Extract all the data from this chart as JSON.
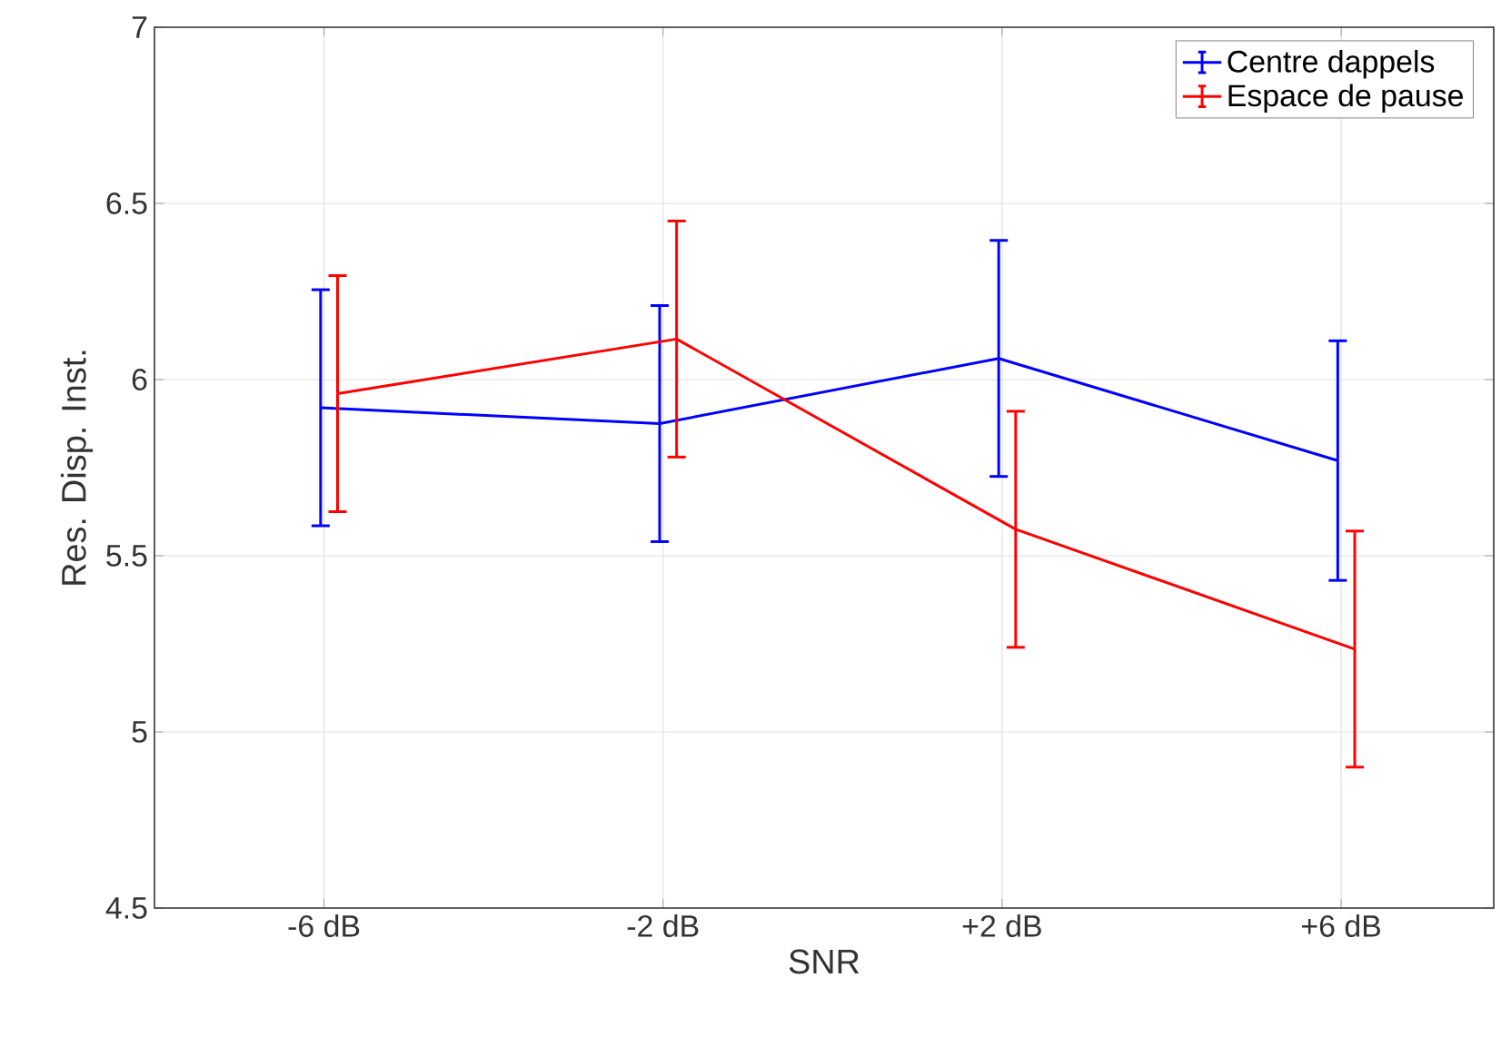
{
  "chart_data": {
    "type": "line",
    "xlabel": "SNR",
    "ylabel": "Res. Disp. Inst.",
    "categories": [
      "-6 dB",
      "-2 dB",
      "+2 dB",
      "+6 dB"
    ],
    "series": [
      {
        "name": "Centre dappels",
        "color": "#0000ff",
        "values": [
          5.92,
          5.875,
          6.06,
          5.77
        ],
        "errors": [
          0.335,
          0.335,
          0.335,
          0.34
        ]
      },
      {
        "name": "Espace de pause",
        "color": "#ff0000",
        "values": [
          5.96,
          6.115,
          5.575,
          5.235
        ],
        "errors": [
          0.335,
          0.335,
          0.335,
          0.335
        ]
      }
    ],
    "ylim": [
      4.5,
      7
    ],
    "yticks": [
      4.5,
      5,
      5.5,
      6,
      6.5,
      7
    ],
    "grid": true,
    "legend": "top right",
    "marker": "none",
    "line_style": "solid"
  }
}
